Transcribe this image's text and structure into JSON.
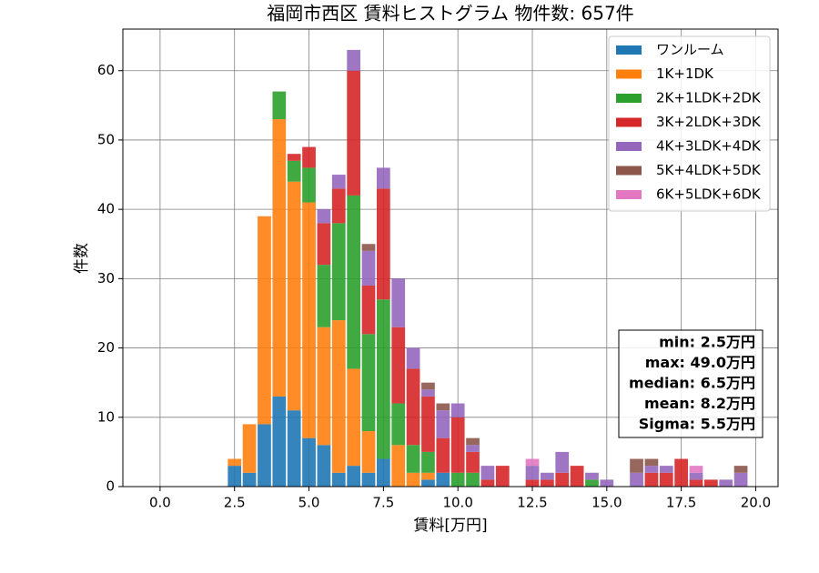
{
  "chart_data": {
    "type": "histogram",
    "title": "福岡市西区 賃料ヒストグラム 物件数: 657件",
    "x_label": "賃料[万円]",
    "y_label": "件数",
    "bins": [
      2.25,
      2.75,
      3.25,
      3.75,
      4.25,
      4.75,
      5.25,
      5.75,
      6.25,
      6.75,
      7.25,
      7.75,
      8.25,
      8.75,
      9.25,
      9.75,
      10.25,
      10.75,
      11.25,
      11.75,
      12.25,
      12.75,
      13.25,
      13.75,
      14.25,
      14.75,
      15.25,
      15.75,
      16.25,
      16.75,
      17.25,
      17.75,
      18.25,
      18.75,
      19.25,
      19.75
    ],
    "series": [
      {
        "name": "ワンルーム",
        "color": "#1f77b4",
        "values": [
          3,
          2,
          9,
          13,
          11,
          7,
          6,
          2,
          3,
          2,
          4,
          0,
          0,
          1,
          2,
          0,
          0,
          0,
          0,
          0,
          0,
          0,
          0,
          0,
          0,
          0,
          0,
          0,
          0,
          0,
          0,
          0,
          0,
          0,
          0
        ]
      },
      {
        "name": "1K+1DK",
        "color": "#ff7f0e",
        "values": [
          1,
          7,
          30,
          40,
          33,
          34,
          17,
          22,
          14,
          6,
          0,
          6,
          2,
          1,
          0,
          0,
          0,
          0,
          0,
          0,
          0,
          0,
          0,
          0,
          0,
          0,
          0,
          0,
          0,
          0,
          0,
          0,
          0,
          0,
          0
        ]
      },
      {
        "name": "2K+1LDK+2DK",
        "color": "#2ca02c",
        "values": [
          0,
          0,
          0,
          4,
          3,
          5,
          9,
          14,
          25,
          14,
          23,
          6,
          4,
          3,
          0,
          2,
          2,
          0,
          0,
          0,
          0,
          0,
          0,
          0,
          1,
          0,
          0,
          0,
          0,
          0,
          0,
          0,
          0,
          0,
          0
        ]
      },
      {
        "name": "3K+2LDK+3DK",
        "color": "#d62728",
        "values": [
          0,
          0,
          0,
          0,
          1,
          3,
          6,
          5,
          18,
          7,
          16,
          11,
          11,
          8,
          5,
          8,
          3,
          1,
          3,
          0,
          1,
          1,
          2,
          3,
          0,
          0,
          0,
          0,
          2,
          2,
          4,
          1,
          1,
          0,
          0
        ]
      },
      {
        "name": "4K+3LDK+4DK",
        "color": "#9467bd",
        "values": [
          0,
          0,
          0,
          0,
          0,
          0,
          2,
          2,
          3,
          5,
          3,
          7,
          3,
          1,
          4,
          2,
          1,
          2,
          0,
          0,
          2,
          1,
          3,
          0,
          1,
          1,
          0,
          2,
          1,
          1,
          0,
          1,
          0,
          1,
          2
        ]
      },
      {
        "name": "5K+4LDK+5DK",
        "color": "#8c564b",
        "values": [
          0,
          0,
          0,
          0,
          0,
          0,
          0,
          0,
          0,
          1,
          0,
          0,
          0,
          1,
          1,
          0,
          1,
          0,
          0,
          0,
          0,
          0,
          0,
          0,
          0,
          0,
          0,
          2,
          1,
          0,
          0,
          0,
          0,
          0,
          1
        ]
      },
      {
        "name": "6K+5LDK+6DK",
        "color": "#e377c2",
        "values": [
          0,
          0,
          0,
          0,
          0,
          0,
          0,
          0,
          0,
          0,
          0,
          0,
          0,
          0,
          0,
          0,
          0,
          0,
          0,
          0,
          1,
          0,
          0,
          0,
          0,
          0,
          0,
          0,
          0,
          0,
          0,
          1,
          0,
          0,
          0
        ]
      }
    ],
    "xlim": [
      -1.25,
      20.75
    ],
    "ylim": [
      0,
      66
    ],
    "xticks": [
      {
        "value": 0,
        "label": "0.0"
      },
      {
        "value": 2.5,
        "label": "2.5"
      },
      {
        "value": 5,
        "label": "5.0"
      },
      {
        "value": 7.5,
        "label": "7.5"
      },
      {
        "value": 10,
        "label": "10.0"
      },
      {
        "value": 12.5,
        "label": "12.5"
      },
      {
        "value": 15,
        "label": "15.0"
      },
      {
        "value": 17.5,
        "label": "17.5"
      },
      {
        "value": 20,
        "label": "20.0"
      }
    ],
    "yticks": [
      0,
      10,
      20,
      30,
      40,
      50,
      60
    ],
    "grid": true,
    "legend": "upper right",
    "annotations": [
      "min: 2.5万円",
      "max: 49.0万円",
      "median: 6.5万円",
      "mean: 8.2万円",
      "Sigma: 5.5万円"
    ]
  }
}
